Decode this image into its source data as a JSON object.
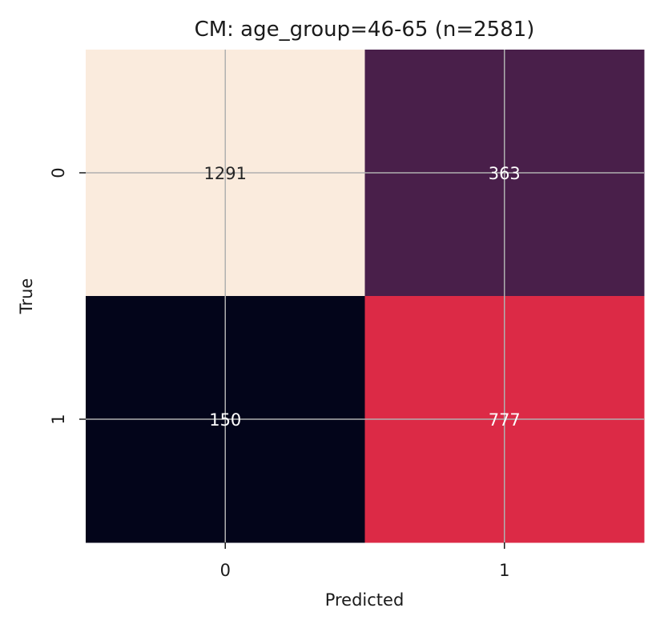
{
  "chart_data": {
    "type": "heatmap",
    "title": "CM: age_group=46-65 (n=2581)",
    "xlabel": "Predicted",
    "ylabel": "True",
    "x_categories": [
      "0",
      "1"
    ],
    "y_categories": [
      "0",
      "1"
    ],
    "values": [
      [
        1291,
        363
      ],
      [
        150,
        777
      ]
    ],
    "grid": true,
    "colorbar": false,
    "colors": {
      "cell_0_0": "#faebdd",
      "cell_0_1": "#491f4a",
      "cell_1_0": "#03051a",
      "cell_1_1": "#dc2a46",
      "text_dark": "#262626",
      "text_light": "#ffffff",
      "grid": "#b0b0b0"
    }
  }
}
